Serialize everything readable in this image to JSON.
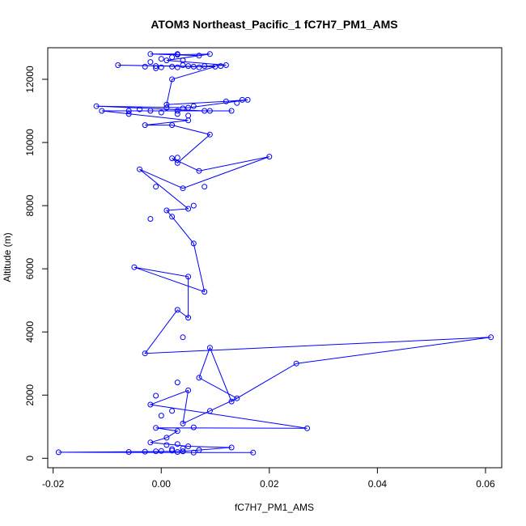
{
  "chart_data": {
    "type": "line",
    "title": "ATOM3 Northeast_Pacific_1 fC7H7_PM1_AMS",
    "xlabel": "fC7H7_PM1_AMS",
    "ylabel": "Altitude (m)",
    "xlim": [
      -0.021,
      0.063
    ],
    "ylim": [
      -300,
      13000
    ],
    "x_ticks": [
      -0.02,
      0.0,
      0.02,
      0.04,
      0.06
    ],
    "x_tick_labels": [
      "-0.02",
      "0.00",
      "0.02",
      "0.04",
      "0.06"
    ],
    "y_ticks": [
      0,
      2000,
      4000,
      6000,
      8000,
      10000,
      12000
    ],
    "y_tick_labels": [
      "0",
      "2000",
      "4000",
      "6000",
      "8000",
      "10000",
      "12000"
    ],
    "grid": false,
    "marker": "open-circle",
    "series": [
      {
        "color": "#0000ff",
        "points": [
          [
            0.017,
            180
          ],
          [
            -0.019,
            190
          ],
          [
            0.004,
            220
          ],
          [
            0.013,
            340
          ],
          [
            0.005,
            380
          ],
          [
            -0.002,
            500
          ],
          [
            0.001,
            650
          ],
          [
            0.003,
            860
          ],
          [
            -0.001,
            960
          ],
          [
            0.027,
            950
          ],
          [
            -0.002,
            1700
          ],
          [
            0.005,
            2150
          ],
          [
            0.004,
            1100
          ],
          [
            0.009,
            1500
          ],
          [
            0.014,
            1900
          ],
          [
            0.007,
            2550
          ],
          [
            0.009,
            3500
          ],
          [
            0.013,
            1800
          ],
          [
            0.025,
            3000
          ],
          [
            0.061,
            3830
          ],
          [
            -0.003,
            3320
          ],
          [
            0.003,
            4700
          ],
          [
            0.005,
            4450
          ],
          [
            0.005,
            5750
          ],
          [
            -0.005,
            6050
          ],
          [
            0.008,
            5270
          ],
          [
            0.006,
            6800
          ],
          [
            0.002,
            7650
          ],
          [
            0.001,
            7850
          ],
          [
            0.005,
            7900
          ],
          [
            -0.004,
            9150
          ],
          [
            0.004,
            8550
          ],
          [
            0.02,
            9550
          ],
          [
            0.007,
            9100
          ],
          [
            0.002,
            9500
          ],
          [
            0.003,
            9350
          ],
          [
            0.009,
            10250
          ],
          [
            0.002,
            10550
          ],
          [
            -0.003,
            10550
          ],
          [
            0.005,
            10700
          ],
          [
            -0.011,
            11000
          ],
          [
            0.003,
            11000
          ],
          [
            0.013,
            11000
          ],
          [
            0.008,
            11000
          ],
          [
            -0.012,
            11150
          ],
          [
            0.005,
            11100
          ],
          [
            0.016,
            11350
          ],
          [
            0.012,
            11300
          ],
          [
            0.001,
            11200
          ],
          [
            0.002,
            12000
          ],
          [
            0.01,
            12400
          ],
          [
            -0.008,
            12450
          ],
          [
            0.006,
            12400
          ],
          [
            0.012,
            12450
          ],
          [
            0.001,
            12600
          ],
          [
            0.009,
            12800
          ],
          [
            0.003,
            12780
          ],
          [
            0.007,
            12750
          ],
          [
            -0.002,
            12800
          ],
          [
            0.003,
            12800
          ]
        ]
      }
    ],
    "extra_markers": [
      [
        -0.006,
        200
      ],
      [
        -0.003,
        210
      ],
      [
        -0.001,
        220
      ],
      [
        0.0,
        230
      ],
      [
        0.002,
        240
      ],
      [
        0.003,
        200
      ],
      [
        0.004,
        220
      ],
      [
        0.006,
        180
      ],
      [
        0.007,
        260
      ],
      [
        0.002,
        290
      ],
      [
        0.004,
        310
      ],
      [
        0.001,
        420
      ],
      [
        0.003,
        450
      ],
      [
        0.006,
        980
      ],
      [
        0.0,
        1350
      ],
      [
        -0.001,
        1980
      ],
      [
        0.003,
        2400
      ],
      [
        0.002,
        1500
      ],
      [
        0.004,
        3830
      ],
      [
        0.003,
        9520
      ],
      [
        -0.002,
        7580
      ],
      [
        -0.001,
        8600
      ],
      [
        0.008,
        8600
      ],
      [
        0.006,
        8000
      ],
      [
        -0.006,
        11000
      ],
      [
        -0.004,
        11050
      ],
      [
        0.001,
        11100
      ],
      [
        0.004,
        11080
      ],
      [
        0.006,
        11150
      ],
      [
        0.009,
        11000
      ],
      [
        0.015,
        11350
      ],
      [
        0.014,
        11250
      ],
      [
        -0.002,
        11000
      ],
      [
        0.0,
        10950
      ],
      [
        0.003,
        10900
      ],
      [
        0.005,
        10850
      ],
      [
        -0.006,
        10900
      ],
      [
        -0.003,
        12400
      ],
      [
        -0.001,
        12420
      ],
      [
        0.0,
        12380
      ],
      [
        0.002,
        12400
      ],
      [
        0.004,
        12450
      ],
      [
        0.005,
        12420
      ],
      [
        0.007,
        12380
      ],
      [
        0.008,
        12420
      ],
      [
        0.011,
        12420
      ],
      [
        -0.002,
        12550
      ],
      [
        0.0,
        12650
      ],
      [
        0.004,
        12600
      ],
      [
        0.002,
        12700
      ],
      [
        -0.001,
        12350
      ],
      [
        0.003,
        12380
      ]
    ]
  }
}
